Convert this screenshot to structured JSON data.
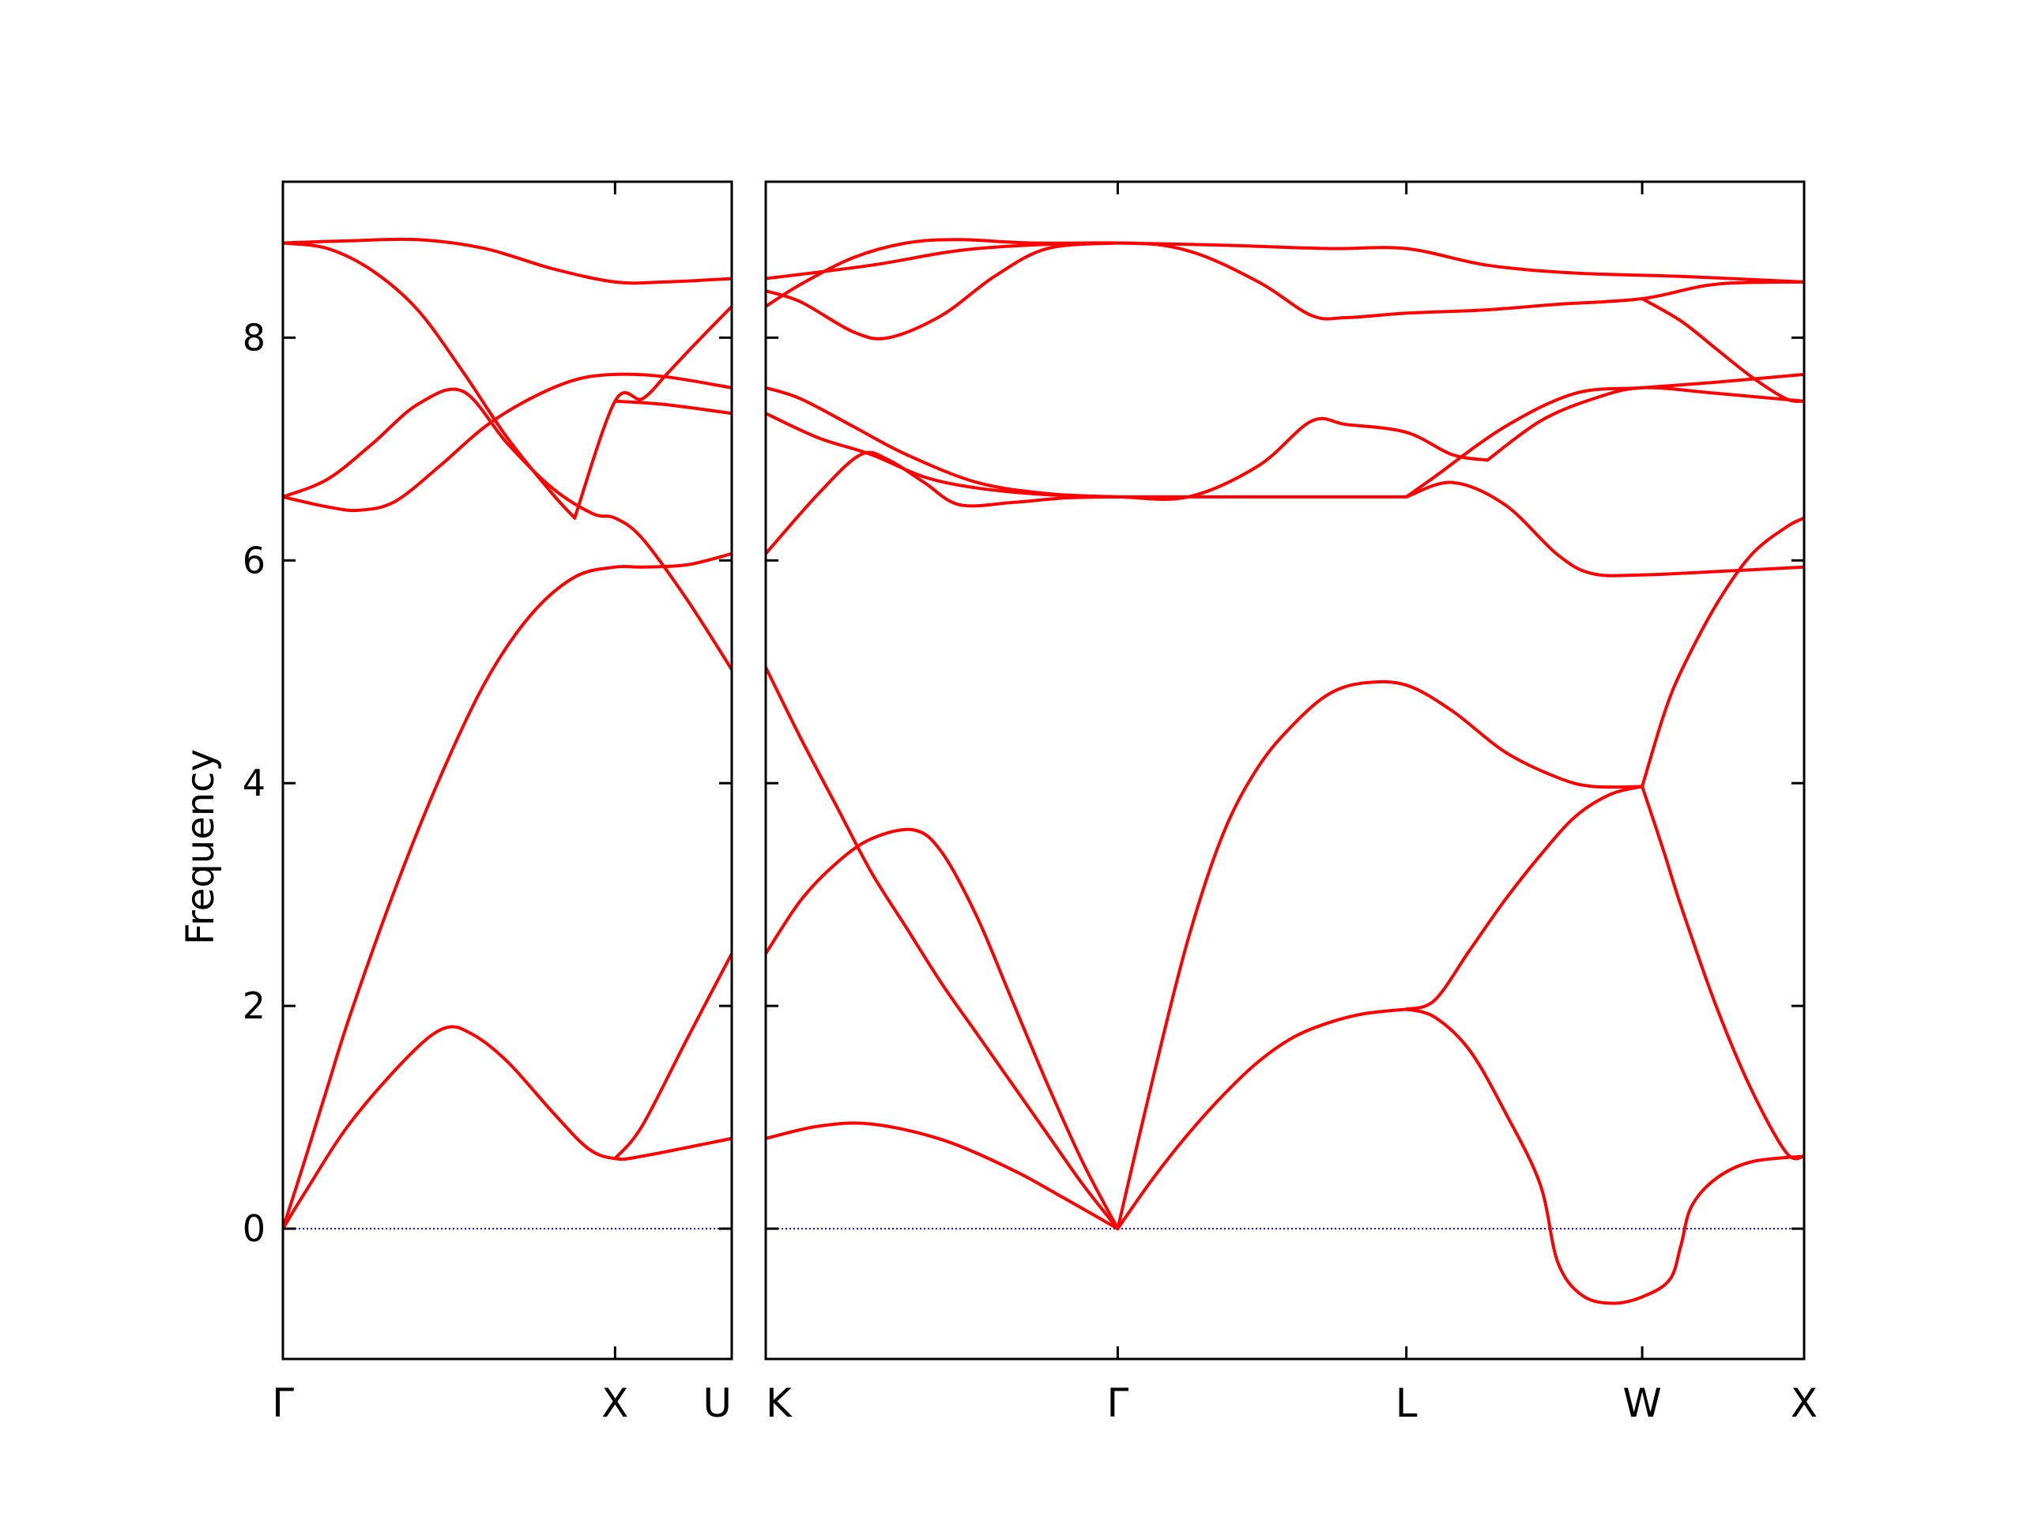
{
  "chart_data": {
    "type": "line",
    "title": "",
    "ylabel": "Frequency",
    "ylim": [
      -1.17,
      9.4
    ],
    "yticks": [
      0,
      2,
      4,
      6,
      8
    ],
    "grid": false,
    "line_color": "#ff0000",
    "zero_line_color": "#0000ff",
    "panels": [
      {
        "xlim": [
          0,
          1.0
        ],
        "xticks": [
          {
            "x": 0.0,
            "label": "Γ"
          },
          {
            "x": 0.74,
            "label": "X"
          },
          {
            "x": 1.0,
            "label": "U"
          }
        ],
        "bands": [
          [
            [
              0,
              0
            ],
            [
              0.05,
              0.33
            ],
            [
              0.15,
              0.95
            ],
            [
              0.28,
              1.55
            ],
            [
              0.36,
              1.8
            ],
            [
              0.42,
              1.75
            ],
            [
              0.5,
              1.5
            ],
            [
              0.6,
              1.05
            ],
            [
              0.68,
              0.72
            ],
            [
              0.74,
              0.63
            ],
            [
              0.8,
              0.65
            ],
            [
              1.0,
              0.81
            ]
          ],
          [
            [
              0,
              0
            ],
            [
              0.05,
              0.63
            ],
            [
              0.1,
              1.28
            ],
            [
              0.15,
              1.92
            ],
            [
              0.25,
              3.05
            ],
            [
              0.35,
              4.05
            ],
            [
              0.45,
              4.9
            ],
            [
              0.55,
              5.5
            ],
            [
              0.65,
              5.85
            ],
            [
              0.74,
              5.94
            ],
            [
              0.8,
              5.94
            ],
            [
              0.9,
              5.96
            ],
            [
              1.0,
              6.06
            ]
          ],
          [
            [
              0,
              6.57
            ],
            [
              0.1,
              6.48
            ],
            [
              0.17,
              6.45
            ],
            [
              0.25,
              6.53
            ],
            [
              0.35,
              6.85
            ],
            [
              0.45,
              7.2
            ],
            [
              0.55,
              7.45
            ],
            [
              0.65,
              7.62
            ],
            [
              0.74,
              7.67
            ],
            [
              0.85,
              7.65
            ],
            [
              1.0,
              7.55
            ]
          ],
          [
            [
              0,
              6.57
            ],
            [
              0.1,
              6.73
            ],
            [
              0.2,
              7.05
            ],
            [
              0.3,
              7.4
            ],
            [
              0.4,
              7.52
            ],
            [
              0.5,
              7.05
            ],
            [
              0.6,
              6.65
            ],
            [
              0.69,
              6.42
            ],
            [
              0.74,
              6.38
            ],
            [
              0.8,
              6.2
            ],
            [
              0.9,
              5.65
            ],
            [
              1.0,
              5.02
            ]
          ],
          [
            [
              0,
              8.85
            ],
            [
              0.1,
              8.8
            ],
            [
              0.2,
              8.6
            ],
            [
              0.3,
              8.25
            ],
            [
              0.4,
              7.7
            ],
            [
              0.5,
              7.1
            ],
            [
              0.6,
              6.6
            ],
            [
              0.65,
              6.38
            ]
          ],
          [
            [
              0.65,
              6.38
            ],
            [
              0.74,
              7.43
            ],
            [
              0.8,
              7.45
            ],
            [
              0.85,
              7.65
            ]
          ],
          [
            [
              0.74,
              7.43
            ],
            [
              0.85,
              7.4
            ],
            [
              1.0,
              7.32
            ]
          ],
          [
            [
              0.74,
              0.63
            ],
            [
              0.8,
              0.92
            ],
            [
              0.9,
              1.7
            ],
            [
              1.0,
              2.47
            ]
          ],
          [
            [
              0.85,
              7.65
            ],
            [
              0.92,
              7.95
            ],
            [
              1.0,
              8.28
            ]
          ],
          [
            [
              0,
              8.85
            ],
            [
              0.15,
              8.87
            ],
            [
              0.3,
              8.88
            ],
            [
              0.45,
              8.8
            ],
            [
              0.6,
              8.62
            ],
            [
              0.74,
              8.5
            ],
            [
              0.85,
              8.5
            ],
            [
              1.0,
              8.53
            ]
          ]
        ]
      },
      {
        "xlim": [
          0,
          2.95
        ],
        "xticks": [
          {
            "x": 0.0,
            "label": "K"
          },
          {
            "x": 1.0,
            "label": "Γ"
          },
          {
            "x": 1.82,
            "label": "L"
          },
          {
            "x": 2.49,
            "label": "W"
          },
          {
            "x": 2.95,
            "label": "X"
          }
        ],
        "bands": [
          [
            [
              0,
              0.81
            ],
            [
              0.15,
              0.92
            ],
            [
              0.3,
              0.94
            ],
            [
              0.5,
              0.8
            ],
            [
              0.7,
              0.53
            ],
            [
              0.85,
              0.27
            ],
            [
              1,
              0
            ]
          ],
          [
            [
              0,
              2.47
            ],
            [
              0.1,
              2.95
            ],
            [
              0.2,
              3.28
            ],
            [
              0.3,
              3.5
            ],
            [
              0.42,
              3.58
            ],
            [
              0.5,
              3.38
            ],
            [
              0.6,
              2.8
            ],
            [
              0.7,
              2.05
            ],
            [
              0.8,
              1.3
            ],
            [
              0.9,
              0.6
            ],
            [
              1,
              0
            ]
          ],
          [
            [
              0,
              5.04
            ],
            [
              0.1,
              4.4
            ],
            [
              0.2,
              3.8
            ],
            [
              0.3,
              3.2
            ],
            [
              0.4,
              2.7
            ],
            [
              0.5,
              2.2
            ],
            [
              0.6,
              1.75
            ],
            [
              0.7,
              1.3
            ],
            [
              0.8,
              0.85
            ],
            [
              0.9,
              0.4
            ],
            [
              1,
              0
            ]
          ],
          [
            [
              1,
              0
            ],
            [
              1.1,
              0.45
            ],
            [
              1.2,
              0.85
            ],
            [
              1.3,
              1.2
            ],
            [
              1.4,
              1.5
            ],
            [
              1.5,
              1.72
            ],
            [
              1.6,
              1.85
            ],
            [
              1.7,
              1.93
            ],
            [
              1.82,
              1.97
            ]
          ],
          [
            [
              1,
              0
            ],
            [
              1.1,
              1.35
            ],
            [
              1.2,
              2.6
            ],
            [
              1.3,
              3.55
            ],
            [
              1.4,
              4.15
            ],
            [
              1.5,
              4.53
            ],
            [
              1.6,
              4.8
            ],
            [
              1.7,
              4.9
            ],
            [
              1.82,
              4.88
            ],
            [
              1.95,
              4.65
            ],
            [
              2.1,
              4.28
            ],
            [
              2.25,
              4.05
            ],
            [
              2.35,
              3.97
            ],
            [
              2.49,
              3.97
            ]
          ],
          [
            [
              1.82,
              1.97
            ],
            [
              1.9,
              2.05
            ],
            [
              2.0,
              2.5
            ],
            [
              2.1,
              2.95
            ],
            [
              2.2,
              3.35
            ],
            [
              2.3,
              3.7
            ],
            [
              2.4,
              3.9
            ],
            [
              2.49,
              3.97
            ]
          ],
          [
            [
              1.82,
              1.97
            ],
            [
              1.9,
              1.9
            ],
            [
              2.0,
              1.6
            ],
            [
              2.1,
              1.05
            ],
            [
              2.2,
              0.4
            ],
            [
              2.25,
              -0.3
            ],
            [
              2.32,
              -0.6
            ],
            [
              2.41,
              -0.67
            ],
            [
              2.5,
              -0.6
            ],
            [
              2.57,
              -0.45
            ],
            [
              2.6,
              -0.15
            ],
            [
              2.63,
              0.2
            ],
            [
              2.7,
              0.45
            ],
            [
              2.8,
              0.6
            ],
            [
              2.95,
              0.65
            ]
          ],
          [
            [
              2.49,
              3.97
            ],
            [
              2.55,
              3.4
            ],
            [
              2.6,
              2.9
            ],
            [
              2.7,
              2.0
            ],
            [
              2.8,
              1.25
            ],
            [
              2.9,
              0.68
            ],
            [
              2.95,
              0.65
            ]
          ],
          [
            [
              2.49,
              3.97
            ],
            [
              2.55,
              4.6
            ],
            [
              2.6,
              5.0
            ],
            [
              2.7,
              5.6
            ],
            [
              2.8,
              6.05
            ],
            [
              2.9,
              6.3
            ],
            [
              2.95,
              6.38
            ]
          ],
          [
            [
              1.82,
              6.57
            ],
            [
              1.95,
              6.7
            ],
            [
              2.1,
              6.5
            ],
            [
              2.25,
              6.05
            ],
            [
              2.35,
              5.88
            ],
            [
              2.49,
              5.87
            ],
            [
              2.7,
              5.9
            ],
            [
              2.95,
              5.94
            ]
          ],
          [
            [
              0,
              6.06
            ],
            [
              0.15,
              6.6
            ],
            [
              0.27,
              6.95
            ],
            [
              0.35,
              6.9
            ],
            [
              0.45,
              6.7
            ],
            [
              0.55,
              6.5
            ],
            [
              0.7,
              6.52
            ],
            [
              0.85,
              6.56
            ],
            [
              1,
              6.57
            ],
            [
              1.3,
              6.57
            ],
            [
              1.6,
              6.57
            ],
            [
              1.82,
              6.57
            ]
          ],
          [
            [
              0,
              7.32
            ],
            [
              0.15,
              7.1
            ],
            [
              0.3,
              6.95
            ],
            [
              0.45,
              6.75
            ],
            [
              0.6,
              6.65
            ],
            [
              0.8,
              6.59
            ],
            [
              1,
              6.57
            ],
            [
              1.2,
              6.57
            ],
            [
              1.4,
              6.85
            ],
            [
              1.55,
              7.25
            ],
            [
              1.65,
              7.22
            ],
            [
              1.82,
              7.15
            ],
            [
              1.95,
              6.95
            ],
            [
              2.05,
              6.9
            ]
          ],
          [
            [
              0,
              7.55
            ],
            [
              0.1,
              7.45
            ],
            [
              0.25,
              7.2
            ],
            [
              0.4,
              6.95
            ],
            [
              0.6,
              6.7
            ],
            [
              0.8,
              6.6
            ],
            [
              1,
              6.57
            ]
          ],
          [
            [
              1.82,
              6.57
            ],
            [
              1.9,
              6.75
            ],
            [
              2.1,
              7.2
            ],
            [
              2.3,
              7.5
            ],
            [
              2.49,
              7.55
            ],
            [
              2.7,
              7.6
            ],
            [
              2.95,
              7.67
            ]
          ],
          [
            [
              2.05,
              6.9
            ],
            [
              2.2,
              7.25
            ],
            [
              2.35,
              7.45
            ],
            [
              2.49,
              7.55
            ],
            [
              2.7,
              7.5
            ],
            [
              2.95,
              7.43
            ]
          ],
          [
            [
              0,
              8.28
            ],
            [
              0.1,
              8.48
            ],
            [
              0.25,
              8.72
            ],
            [
              0.4,
              8.85
            ],
            [
              0.55,
              8.88
            ],
            [
              0.75,
              8.85
            ],
            [
              1,
              8.85
            ],
            [
              1.3,
              8.83
            ],
            [
              1.6,
              8.8
            ],
            [
              1.82,
              8.8
            ],
            [
              2.05,
              8.65
            ],
            [
              2.3,
              8.58
            ],
            [
              2.6,
              8.55
            ],
            [
              2.95,
              8.5
            ]
          ],
          [
            [
              0,
              8.53
            ],
            [
              0.3,
              8.65
            ],
            [
              0.6,
              8.8
            ],
            [
              1,
              8.85
            ],
            [
              1.2,
              8.78
            ],
            [
              1.4,
              8.5
            ],
            [
              1.55,
              8.2
            ],
            [
              1.65,
              8.18
            ],
            [
              1.82,
              8.22
            ],
            [
              2.05,
              8.25
            ],
            [
              2.25,
              8.3
            ],
            [
              2.49,
              8.35
            ],
            [
              2.7,
              8.48
            ],
            [
              2.95,
              8.5
            ]
          ],
          [
            [
              0,
              8.42
            ],
            [
              0.1,
              8.32
            ],
            [
              0.25,
              8.05
            ],
            [
              0.35,
              8.0
            ],
            [
              0.5,
              8.2
            ],
            [
              0.65,
              8.55
            ],
            [
              0.8,
              8.8
            ],
            [
              1,
              8.85
            ]
          ],
          [
            [
              2.49,
              8.35
            ],
            [
              2.6,
              8.15
            ],
            [
              2.7,
              7.9
            ],
            [
              2.8,
              7.65
            ],
            [
              2.9,
              7.45
            ],
            [
              2.95,
              7.43
            ]
          ]
        ]
      }
    ]
  }
}
